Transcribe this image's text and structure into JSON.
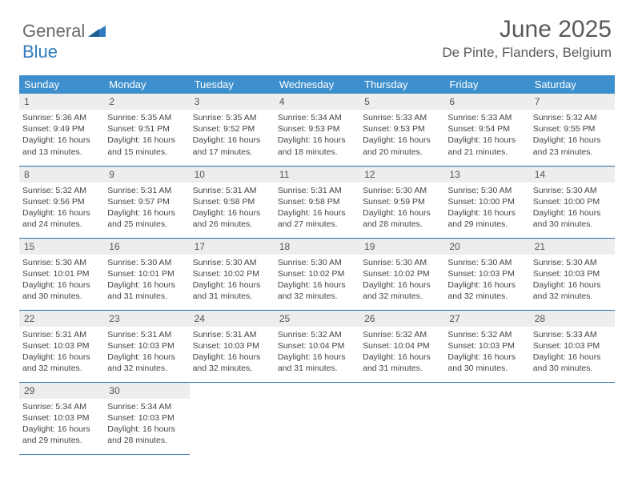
{
  "logo": {
    "general": "General",
    "blue": "Blue"
  },
  "title": "June 2025",
  "location": "De Pinte, Flanders, Belgium",
  "colors": {
    "header_bg": "#3e8fcd",
    "header_text": "#ffffff",
    "daynum_bg": "#ededed",
    "border": "#2a6fa8",
    "logo_gray": "#6a6a6a",
    "logo_blue": "#2f7bbf",
    "title_color": "#5a5a5a",
    "body_text": "#444444",
    "page_bg": "#ffffff"
  },
  "daynames": [
    "Sunday",
    "Monday",
    "Tuesday",
    "Wednesday",
    "Thursday",
    "Friday",
    "Saturday"
  ],
  "weeks": [
    [
      {
        "n": "1",
        "sr": "5:36 AM",
        "ss": "9:49 PM",
        "dl": "16 hours and 13 minutes."
      },
      {
        "n": "2",
        "sr": "5:35 AM",
        "ss": "9:51 PM",
        "dl": "16 hours and 15 minutes."
      },
      {
        "n": "3",
        "sr": "5:35 AM",
        "ss": "9:52 PM",
        "dl": "16 hours and 17 minutes."
      },
      {
        "n": "4",
        "sr": "5:34 AM",
        "ss": "9:53 PM",
        "dl": "16 hours and 18 minutes."
      },
      {
        "n": "5",
        "sr": "5:33 AM",
        "ss": "9:53 PM",
        "dl": "16 hours and 20 minutes."
      },
      {
        "n": "6",
        "sr": "5:33 AM",
        "ss": "9:54 PM",
        "dl": "16 hours and 21 minutes."
      },
      {
        "n": "7",
        "sr": "5:32 AM",
        "ss": "9:55 PM",
        "dl": "16 hours and 23 minutes."
      }
    ],
    [
      {
        "n": "8",
        "sr": "5:32 AM",
        "ss": "9:56 PM",
        "dl": "16 hours and 24 minutes."
      },
      {
        "n": "9",
        "sr": "5:31 AM",
        "ss": "9:57 PM",
        "dl": "16 hours and 25 minutes."
      },
      {
        "n": "10",
        "sr": "5:31 AM",
        "ss": "9:58 PM",
        "dl": "16 hours and 26 minutes."
      },
      {
        "n": "11",
        "sr": "5:31 AM",
        "ss": "9:58 PM",
        "dl": "16 hours and 27 minutes."
      },
      {
        "n": "12",
        "sr": "5:30 AM",
        "ss": "9:59 PM",
        "dl": "16 hours and 28 minutes."
      },
      {
        "n": "13",
        "sr": "5:30 AM",
        "ss": "10:00 PM",
        "dl": "16 hours and 29 minutes."
      },
      {
        "n": "14",
        "sr": "5:30 AM",
        "ss": "10:00 PM",
        "dl": "16 hours and 30 minutes."
      }
    ],
    [
      {
        "n": "15",
        "sr": "5:30 AM",
        "ss": "10:01 PM",
        "dl": "16 hours and 30 minutes."
      },
      {
        "n": "16",
        "sr": "5:30 AM",
        "ss": "10:01 PM",
        "dl": "16 hours and 31 minutes."
      },
      {
        "n": "17",
        "sr": "5:30 AM",
        "ss": "10:02 PM",
        "dl": "16 hours and 31 minutes."
      },
      {
        "n": "18",
        "sr": "5:30 AM",
        "ss": "10:02 PM",
        "dl": "16 hours and 32 minutes."
      },
      {
        "n": "19",
        "sr": "5:30 AM",
        "ss": "10:02 PM",
        "dl": "16 hours and 32 minutes."
      },
      {
        "n": "20",
        "sr": "5:30 AM",
        "ss": "10:03 PM",
        "dl": "16 hours and 32 minutes."
      },
      {
        "n": "21",
        "sr": "5:30 AM",
        "ss": "10:03 PM",
        "dl": "16 hours and 32 minutes."
      }
    ],
    [
      {
        "n": "22",
        "sr": "5:31 AM",
        "ss": "10:03 PM",
        "dl": "16 hours and 32 minutes."
      },
      {
        "n": "23",
        "sr": "5:31 AM",
        "ss": "10:03 PM",
        "dl": "16 hours and 32 minutes."
      },
      {
        "n": "24",
        "sr": "5:31 AM",
        "ss": "10:03 PM",
        "dl": "16 hours and 32 minutes."
      },
      {
        "n": "25",
        "sr": "5:32 AM",
        "ss": "10:04 PM",
        "dl": "16 hours and 31 minutes."
      },
      {
        "n": "26",
        "sr": "5:32 AM",
        "ss": "10:04 PM",
        "dl": "16 hours and 31 minutes."
      },
      {
        "n": "27",
        "sr": "5:32 AM",
        "ss": "10:03 PM",
        "dl": "16 hours and 30 minutes."
      },
      {
        "n": "28",
        "sr": "5:33 AM",
        "ss": "10:03 PM",
        "dl": "16 hours and 30 minutes."
      }
    ],
    [
      {
        "n": "29",
        "sr": "5:34 AM",
        "ss": "10:03 PM",
        "dl": "16 hours and 29 minutes."
      },
      {
        "n": "30",
        "sr": "5:34 AM",
        "ss": "10:03 PM",
        "dl": "16 hours and 28 minutes."
      },
      null,
      null,
      null,
      null,
      null
    ]
  ],
  "labels": {
    "sunrise": "Sunrise:",
    "sunset": "Sunset:",
    "daylight": "Daylight:"
  }
}
